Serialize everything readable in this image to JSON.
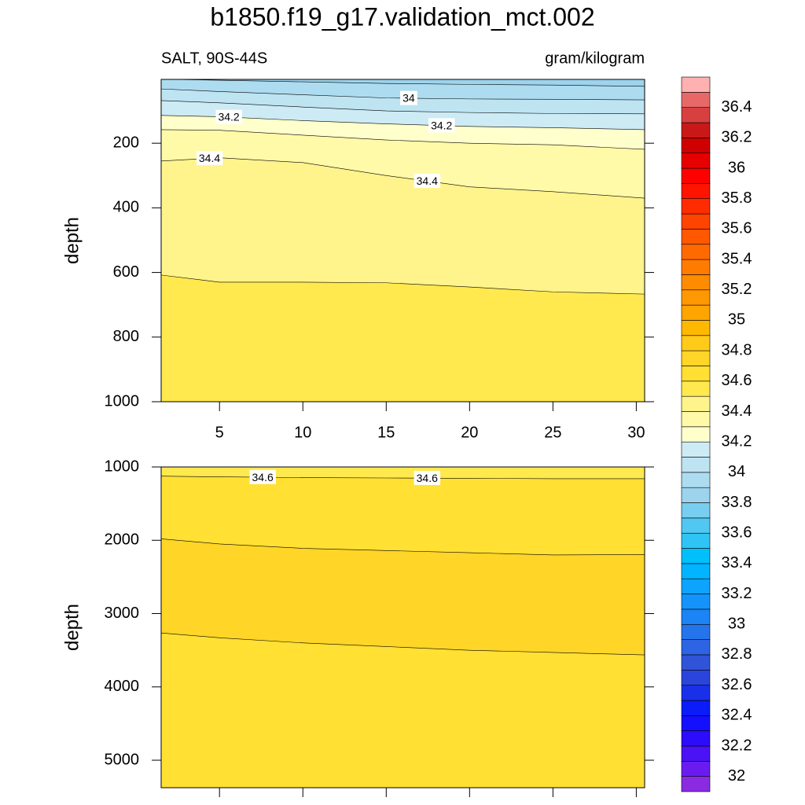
{
  "chart_data": {
    "type": "contour",
    "title": "b1850.f19_g17.validation_mct.002",
    "subtitle_left": "SALT, 90S-44S",
    "subtitle_right": "gram/kilogram",
    "xlim": [
      1.5,
      30.5
    ],
    "xticks": [
      5,
      10,
      15,
      20,
      25,
      30
    ],
    "x": [
      1.5,
      5,
      10,
      15,
      20,
      25,
      30.5
    ],
    "panels": [
      {
        "y_label": "depth",
        "ylim": [
          1000,
          2.5
        ],
        "yticks": [
          200,
          400,
          600,
          800,
          1000
        ],
        "contours": [
          {
            "level": 33.9,
            "depth": [
              2,
              5,
              10,
              15,
              18,
              20,
              24
            ]
          },
          {
            "level": 34,
            "depth": [
              32,
              40,
              50,
              60,
              63,
              64,
              66
            ]
          },
          {
            "level": 34.1,
            "depth": [
              68,
              75,
              88,
              100,
              105,
              108,
              109
            ]
          },
          {
            "level": 34.2,
            "depth": [
              114,
              118,
              130,
              140,
              148,
              152,
              158
            ]
          },
          {
            "level": 34.3,
            "depth": [
              158,
              160,
              175,
              190,
              200,
              205,
              219
            ]
          },
          {
            "level": 34.4,
            "depth": [
              255,
              245,
              260,
              300,
              335,
              350,
              370
            ]
          },
          {
            "level": 34.5,
            "depth": [
              608,
              630,
              630,
              632,
              645,
              660,
              667
            ]
          }
        ]
      },
      {
        "y_label": "depth",
        "ylim": [
          5375,
          1000
        ],
        "yticks": [
          1000,
          2000,
          3000,
          4000,
          5000
        ],
        "contours": [
          {
            "level": 34.6,
            "depth": [
              1125,
              1135,
              1145,
              1150,
              1155,
              1160,
              1160
            ]
          },
          {
            "level": 34.7,
            "depth": [
              1980,
              2050,
              2110,
              2140,
              2170,
              2200,
              2195
            ]
          },
          {
            "level": 34.7,
            "depth": [
              3265,
              3330,
              3400,
              3450,
              3500,
              3530,
              3564
            ]
          }
        ]
      }
    ],
    "colorbar": {
      "lim": [
        31.9,
        36.6
      ],
      "ticks": [
        32,
        32.2,
        32.4,
        32.6,
        32.8,
        33,
        33.2,
        33.4,
        33.6,
        33.8,
        34,
        34.2,
        34.4,
        34.6,
        34.8,
        35,
        35.2,
        35.4,
        35.6,
        35.8,
        36,
        36.2,
        36.4
      ],
      "colors": [
        "#8A2BE2",
        "#6A1CF0",
        "#4A12F5",
        "#2C0CFA",
        "#1410FF",
        "#0A1CF8",
        "#1A30E8",
        "#2A44DC",
        "#3054D8",
        "#2C64E4",
        "#2474EC",
        "#1C84F4",
        "#1494FA",
        "#0CA4FF",
        "#00B4FF",
        "#00C0FC",
        "#30C4F4",
        "#50C8F2",
        "#78CEF0",
        "#9DD3EC",
        "#ADDCF0",
        "#BEE4F2",
        "#CDEBF5",
        "#FFFFCC",
        "#FFFAA8",
        "#FFF38C",
        "#FFE94E",
        "#FFE033",
        "#FFD527",
        "#FFCA18",
        "#FFB800",
        "#FFA500",
        "#FF9800",
        "#FF8C00",
        "#FF7C00",
        "#FF6A00",
        "#FF5800",
        "#FF4400",
        "#FF2C00",
        "#FF1400",
        "#FF0000",
        "#E60000",
        "#D00000",
        "#C81818",
        "#D84040",
        "#E86868",
        "#FFB0B0"
      ]
    }
  }
}
